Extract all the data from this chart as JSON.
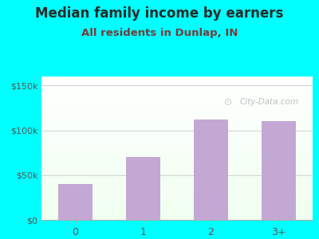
{
  "title": "Median family income by earners",
  "subtitle": "All residents in Dunlap, IN",
  "categories": [
    "0",
    "1",
    "2",
    "3+"
  ],
  "values": [
    40000,
    70000,
    112000,
    110000
  ],
  "bar_color": "#c4a8d4",
  "background_color": "#00FFFF",
  "plot_bg_top": "#f0fff0",
  "plot_bg_bottom": "#ffffff",
  "yticks": [
    0,
    50000,
    100000,
    150000
  ],
  "ytick_labels": [
    "$0",
    "$50k",
    "$100k",
    "$150k"
  ],
  "ylim": [
    0,
    160000
  ],
  "title_fontsize": 12,
  "subtitle_fontsize": 9.5,
  "title_color": "#2a2a2a",
  "subtitle_color": "#7a3a3a",
  "tick_color": "#555555",
  "watermark": "City-Data.com"
}
